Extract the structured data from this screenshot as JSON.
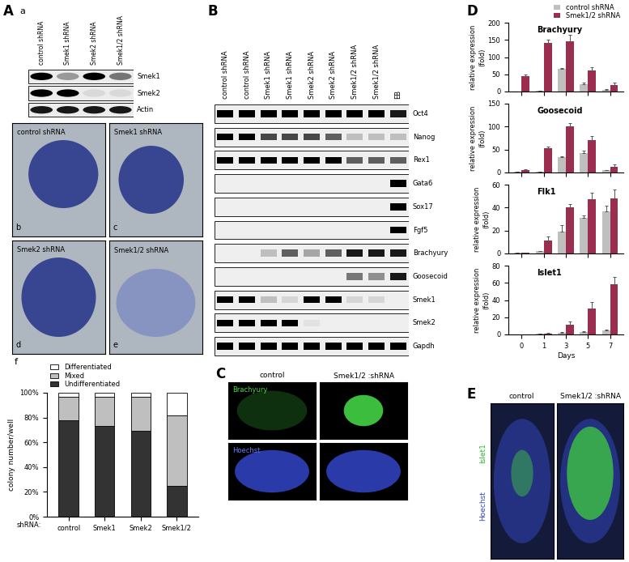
{
  "chart_data": [
    {
      "type": "bar",
      "stacked": true,
      "categories": [
        "control",
        "Smek1",
        "Smek2",
        "Smek1/2"
      ],
      "x_label": "shRNA:",
      "y_label": "colony number/well",
      "series": [
        {
          "name": "Undifferentiated",
          "color": "#333333",
          "values": [
            78,
            73,
            69,
            25
          ]
        },
        {
          "name": "Mixed",
          "color": "#bfbfbf",
          "values": [
            19,
            24,
            28,
            57
          ]
        },
        {
          "name": "Differentiated",
          "color": "#ffffff",
          "values": [
            3,
            3,
            3,
            18
          ]
        }
      ],
      "ylim": [
        0,
        100
      ],
      "yticks": [
        {
          "value": 0,
          "label": "0%"
        },
        {
          "value": 20,
          "label": "20%"
        },
        {
          "value": 40,
          "label": "40%"
        },
        {
          "value": 60,
          "label": "60%"
        },
        {
          "value": 80,
          "label": "80%"
        },
        {
          "value": 100,
          "label": "100%"
        }
      ],
      "legend": "lower left"
    },
    {
      "type": "bar",
      "title": "Brachyury",
      "categories": [
        "0",
        "1",
        "3",
        "5",
        "7"
      ],
      "y_label": "relative expression\n(fold)",
      "series": [
        {
          "name": "control shRNA",
          "color": "#bfbfbf",
          "values": [
            1,
            2,
            65,
            22,
            5
          ],
          "errors": [
            0,
            0,
            3,
            3,
            1
          ]
        },
        {
          "name": "Smek1/2 shRNA",
          "color": "#9b2d4f",
          "values": [
            45,
            142,
            147,
            62,
            20
          ],
          "errors": [
            5,
            8,
            18,
            8,
            5
          ]
        }
      ],
      "ylim": [
        0,
        200
      ],
      "yticks": [
        0,
        50,
        100,
        150,
        200
      ],
      "tick_labels": "y",
      "legend": "lower right"
    },
    {
      "type": "bar",
      "title": "Goosecoid",
      "categories": [
        "0",
        "1",
        "3",
        "5",
        "7"
      ],
      "y_label": "relative expression\n(fold)",
      "series": [
        {
          "name": "control shRNA",
          "color": "#bfbfbf",
          "values": [
            1,
            2,
            33,
            42,
            5
          ],
          "errors": [
            0,
            0,
            3,
            5,
            1
          ]
        },
        {
          "name": "Smek1/2 shRNA",
          "color": "#9b2d4f",
          "values": [
            6,
            53,
            100,
            70,
            13
          ],
          "errors": [
            1,
            3,
            7,
            10,
            4
          ]
        }
      ],
      "ylim": [
        0,
        150
      ],
      "yticks": [
        0,
        50,
        100,
        150
      ],
      "tick_labels": "y"
    },
    {
      "type": "bar",
      "title": "Flk1",
      "categories": [
        "0",
        "1",
        "3",
        "5",
        "7"
      ],
      "y_label": "relative expression\n(fold)",
      "series": [
        {
          "name": "control shRNA",
          "color": "#bfbfbf",
          "values": [
            1,
            2,
            19,
            31,
            37
          ],
          "errors": [
            0,
            0,
            6,
            2,
            5
          ]
        },
        {
          "name": "Smek1/2 shRNA",
          "color": "#9b2d4f",
          "values": [
            1,
            11,
            40,
            47,
            48
          ],
          "errors": [
            0,
            4,
            3,
            6,
            8
          ]
        }
      ],
      "ylim": [
        0,
        60
      ],
      "yticks": [
        0,
        20,
        40,
        60
      ],
      "tick_labels": "y"
    },
    {
      "type": "bar",
      "title": "Islet1",
      "categories": [
        "0",
        "1",
        "3",
        "5",
        "7"
      ],
      "x_label": "Days",
      "y_label": "relative expression\n(fold)",
      "series": [
        {
          "name": "control shRNA",
          "color": "#bfbfbf",
          "values": [
            0,
            0.5,
            2,
            3,
            5
          ],
          "errors": [
            0,
            0,
            1,
            1,
            1
          ]
        },
        {
          "name": "Smek1/2 shRNA",
          "color": "#9b2d4f",
          "values": [
            0,
            1,
            11,
            30,
            58
          ],
          "errors": [
            0,
            0.5,
            4,
            8,
            9
          ]
        }
      ],
      "ylim": [
        0,
        80
      ],
      "yticks": [
        0,
        20,
        40,
        60,
        80
      ]
    }
  ],
  "panels": {
    "A": {
      "label": "A",
      "a": {
        "label": "a",
        "lanes": [
          "control shRNA",
          "Smek1 shRNA",
          "Smek2 shRNA",
          "Smek1/2 shRNA"
        ],
        "rows": [
          "Smek1",
          "Smek2",
          "Actin"
        ]
      },
      "images": [
        {
          "label": "b",
          "caption": "control shRNA"
        },
        {
          "label": "c",
          "caption": "Smek1 shRNA"
        },
        {
          "label": "d",
          "caption": "Smek2 shRNA"
        },
        {
          "label": "e",
          "caption": "Smek1/2 shRNA"
        }
      ],
      "f": {
        "label": "f"
      }
    },
    "B": {
      "label": "B",
      "lanes": [
        "control shRNA",
        "control shRNA",
        "Smek1 shRNA",
        "Smek1 shRNA",
        "Smek2 shRNA",
        "Smek2 shRNA",
        "Smek1/2 shRNA",
        "Smek1/2 shRNA",
        "EB"
      ],
      "rows": [
        "Oct4",
        "Nanog",
        "Rex1",
        "Gata6",
        "Sox17",
        "Fgf5",
        "Brachyury",
        "Goosecoid",
        "Smek1",
        "Smek2",
        "Gapdh"
      ]
    },
    "C": {
      "label": "C",
      "columns": [
        "control",
        "Smek1/2 :shRNA"
      ],
      "rows": [
        "Brachyury",
        "Hoechst"
      ]
    },
    "D": {
      "label": "D"
    },
    "E": {
      "label": "E",
      "columns": [
        "control",
        "Smek1/2 :shRNA"
      ],
      "rows": [
        "Islet1",
        "Hoechst"
      ]
    }
  }
}
